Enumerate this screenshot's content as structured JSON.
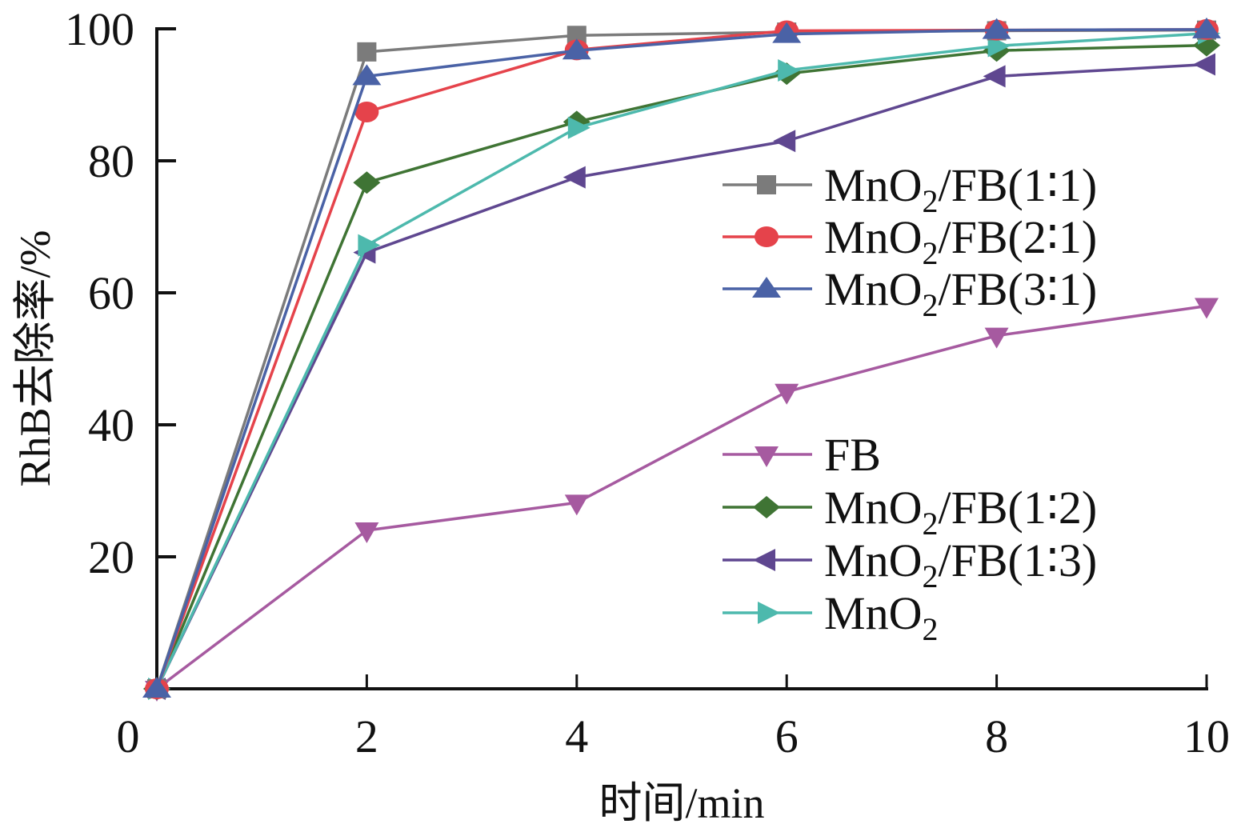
{
  "chart_data": {
    "type": "line",
    "title": "",
    "xlabel": "时间/min",
    "ylabel": "RhB去除率/%",
    "xlim": [
      0,
      10
    ],
    "ylim": [
      0,
      100
    ],
    "x_ticks": [
      "0",
      "2",
      "4",
      "6",
      "8",
      "10"
    ],
    "x_tick_values": [
      0,
      2,
      4,
      6,
      8,
      10
    ],
    "y_ticks": [
      "20",
      "40",
      "60",
      "80",
      "100"
    ],
    "y_tick_values": [
      20,
      40,
      60,
      80,
      100
    ],
    "grid": false,
    "legend_placement": "right",
    "x": [
      0,
      2,
      4,
      6,
      8,
      10
    ],
    "series": [
      {
        "name": "MnO2/FB(1∶1)",
        "label_main": "MnO",
        "label_sub": "2",
        "label_rest": "/FB(1∶1)",
        "color": "#7b7b7b",
        "marker": "square",
        "values": [
          0,
          96.5,
          99.0,
          99.5,
          99.7,
          99.8
        ]
      },
      {
        "name": "MnO2/FB(2∶1)",
        "label_main": "MnO",
        "label_sub": "2",
        "label_rest": "/FB(2∶1)",
        "color": "#e5434b",
        "marker": "circle",
        "values": [
          0,
          87.4,
          96.8,
          99.7,
          99.8,
          99.9
        ]
      },
      {
        "name": "MnO2/FB(3∶1)",
        "label_main": "MnO",
        "label_sub": "2",
        "label_rest": "/FB(3∶1)",
        "color": "#4a62a6",
        "marker": "triangle-up",
        "values": [
          0,
          92.8,
          96.7,
          99.2,
          99.8,
          99.9
        ]
      },
      {
        "name": "FB",
        "label_main": "FB",
        "label_sub": "",
        "label_rest": "",
        "color": "#a65aa0",
        "marker": "triangle-down",
        "values": [
          0,
          24.0,
          28.2,
          45.0,
          53.5,
          58.0
        ]
      },
      {
        "name": "MnO2/FB(1∶2)",
        "label_main": "MnO",
        "label_sub": "2",
        "label_rest": "/FB(1∶2)",
        "color": "#3f7434",
        "marker": "diamond",
        "values": [
          0,
          76.7,
          85.9,
          93.2,
          96.7,
          97.5
        ]
      },
      {
        "name": "MnO2/FB(1∶3)",
        "label_main": "MnO",
        "label_sub": "2",
        "label_rest": "/FB(1∶3)",
        "color": "#5f4790",
        "marker": "triangle-left",
        "values": [
          0,
          66.1,
          77.5,
          83.0,
          92.8,
          94.6
        ]
      },
      {
        "name": "MnO2",
        "label_main": "MnO",
        "label_sub": "2",
        "label_rest": "",
        "color": "#4db9ad",
        "marker": "triangle-right",
        "values": [
          0,
          67.2,
          85.0,
          93.7,
          97.4,
          99.3
        ]
      }
    ]
  }
}
